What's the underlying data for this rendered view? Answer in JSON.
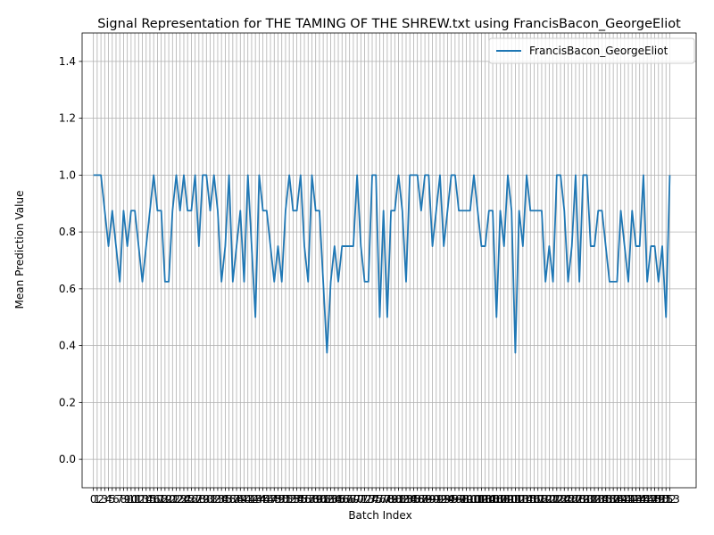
{
  "chart_data": {
    "type": "line",
    "title": "Signal Representation for THE TAMING OF THE SHREW.txt using FrancisBacon_GeorgeEliot",
    "xlabel": "Batch Index",
    "ylabel": "Mean Prediction Value",
    "xlim": [
      -3,
      160
    ],
    "ylim": [
      -0.1,
      1.5
    ],
    "yticks": [
      0.0,
      0.2,
      0.4,
      0.6,
      0.8,
      1.0,
      1.2,
      1.4
    ],
    "ytick_labels": [
      "0.0",
      "0.2",
      "0.4",
      "0.6",
      "0.8",
      "1.0",
      "1.2",
      "1.4"
    ],
    "grid": true,
    "legend_position": "upper right",
    "color": "#1f77b4",
    "series": [
      {
        "name": "FrancisBacon_GeorgeEliot",
        "x": [
          0,
          1,
          2,
          3,
          4,
          5,
          6,
          7,
          8,
          9,
          10,
          11,
          12,
          13,
          14,
          15,
          16,
          17,
          18,
          19,
          20,
          21,
          22,
          23,
          24,
          25,
          26,
          27,
          28,
          29,
          30,
          31,
          32,
          33,
          34,
          35,
          36,
          37,
          38,
          39,
          40,
          41,
          42,
          43,
          44,
          45,
          46,
          47,
          48,
          49,
          50,
          51,
          52,
          53,
          54,
          55,
          56,
          57,
          58,
          59,
          60,
          61,
          62,
          63,
          64,
          65,
          66,
          67,
          68,
          69,
          70,
          71,
          72,
          73,
          74,
          75,
          76,
          77,
          78,
          79,
          80,
          81,
          82,
          83,
          84,
          85,
          86,
          87,
          88,
          89,
          90,
          91,
          92,
          93,
          94,
          95,
          96,
          97,
          98,
          99,
          100,
          101,
          102,
          103,
          104,
          105,
          106,
          107,
          108,
          109,
          110,
          111,
          112,
          113,
          114,
          115,
          116,
          117,
          118,
          119,
          120,
          121,
          122,
          123,
          124,
          125,
          126,
          127,
          128,
          129,
          130,
          131,
          132,
          133,
          134,
          135,
          136,
          137,
          138,
          139,
          140,
          141,
          142,
          143,
          144,
          145,
          146,
          147,
          148,
          149,
          150,
          151,
          152,
          153
        ],
        "values": [
          1.0,
          1.0,
          1.0,
          0.875,
          0.75,
          0.875,
          0.75,
          0.625,
          0.875,
          0.75,
          0.875,
          0.875,
          0.75,
          0.625,
          0.75,
          0.875,
          1.0,
          0.875,
          0.875,
          0.625,
          0.625,
          0.875,
          1.0,
          0.875,
          1.0,
          0.875,
          0.875,
          1.0,
          0.75,
          1.0,
          1.0,
          0.875,
          1.0,
          0.875,
          0.625,
          0.75,
          1.0,
          0.625,
          0.75,
          0.875,
          0.625,
          1.0,
          0.75,
          0.5,
          1.0,
          0.875,
          0.875,
          0.75,
          0.625,
          0.75,
          0.625,
          0.875,
          1.0,
          0.875,
          0.875,
          1.0,
          0.75,
          0.625,
          1.0,
          0.875,
          0.875,
          0.625,
          0.375,
          0.625,
          0.75,
          0.625,
          0.75,
          0.75,
          0.75,
          0.75,
          1.0,
          0.75,
          0.625,
          0.625,
          1.0,
          1.0,
          0.5,
          0.875,
          0.5,
          0.875,
          0.875,
          1.0,
          0.875,
          0.625,
          1.0,
          1.0,
          1.0,
          0.875,
          1.0,
          1.0,
          0.75,
          0.875,
          1.0,
          0.75,
          0.875,
          1.0,
          1.0,
          0.875,
          0.875,
          0.875,
          0.875,
          1.0,
          0.875,
          0.75,
          0.75,
          0.875,
          0.875,
          0.5,
          0.875,
          0.75,
          1.0,
          0.875,
          0.375,
          0.875,
          0.75,
          1.0,
          0.875,
          0.875,
          0.875,
          0.875,
          0.625,
          0.75,
          0.625,
          1.0,
          1.0,
          0.875,
          0.625,
          0.75,
          1.0,
          0.625,
          1.0,
          1.0,
          0.75,
          0.75,
          0.875,
          0.875,
          0.75,
          0.625,
          0.625,
          0.625,
          0.875,
          0.75,
          0.625,
          0.875,
          0.75,
          0.75,
          1.0,
          0.625,
          0.75,
          0.75,
          0.625,
          0.75,
          0.5,
          1.0
        ]
      }
    ]
  }
}
